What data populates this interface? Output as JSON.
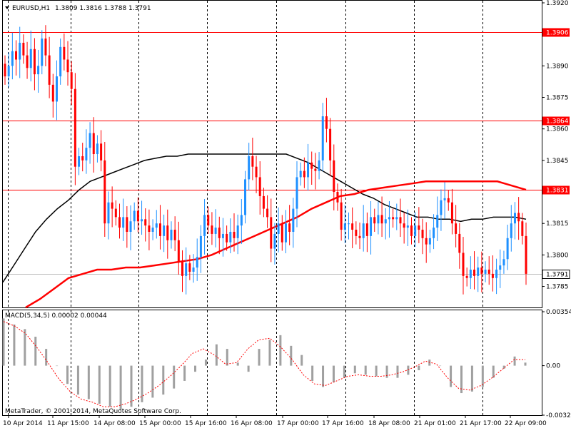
{
  "window": {
    "title": "EURUSD,H1",
    "ohlc": "1.3809 1.3816 1.3788 1.3791",
    "copyright": "MetaTrader, © 2001-2014, MetaQuotes Software Corp."
  },
  "chart_data": [
    {
      "type": "candlestick",
      "symbol": "EURUSD",
      "timeframe": "H1",
      "ylim": [
        1.3775,
        1.392
      ],
      "y_ticks": [
        "1.3920",
        "1.3890",
        "1.3875",
        "1.3860",
        "1.3845",
        "1.3815",
        "1.3800",
        "1.3785"
      ],
      "x_ticks": [
        "10 Apr 2014",
        "11 Apr 15:00",
        "14 Apr 08:00",
        "15 Apr 00:00",
        "15 Apr 16:00",
        "16 Apr 08:00",
        "17 Apr 00:00",
        "17 Apr 16:00",
        "18 Apr 08:00",
        "21 Apr 01:00",
        "21 Apr 17:00",
        "22 Apr 09:00"
      ],
      "horizontal_levels": [
        {
          "label": "1.3906",
          "value": 1.3906,
          "color": "#ff0000"
        },
        {
          "label": "1.3864",
          "value": 1.3864,
          "color": "#ff0000"
        },
        {
          "label": "1.3831",
          "value": 1.3831,
          "color": "#ff0000"
        }
      ],
      "current_price": {
        "label": "1.3791",
        "value": 1.3791
      },
      "bull_color": "#1e90ff",
      "bear_color": "#ff0000",
      "closes": [
        1.3885,
        1.389,
        1.3897,
        1.3893,
        1.3901,
        1.3895,
        1.3889,
        1.3898,
        1.3886,
        1.389,
        1.3903,
        1.3895,
        1.3881,
        1.3873,
        1.3885,
        1.3899,
        1.3893,
        1.3887,
        1.3879,
        1.3842,
        1.3847,
        1.3845,
        1.3851,
        1.3858,
        1.3848,
        1.3853,
        1.3845,
        1.3815,
        1.3825,
        1.3822,
        1.3818,
        1.3813,
        1.3818,
        1.3811,
        1.3816,
        1.3821,
        1.3816,
        1.3817,
        1.3814,
        1.3811,
        1.3813,
        1.3815,
        1.3809,
        1.3814,
        1.3807,
        1.3812,
        1.3807,
        1.3797,
        1.379,
        1.3796,
        1.3792,
        1.3794,
        1.3799,
        1.3809,
        1.3819,
        1.3814,
        1.381,
        1.3813,
        1.3808,
        1.381,
        1.3806,
        1.3811,
        1.3808,
        1.3814,
        1.3819,
        1.3836,
        1.3847,
        1.3842,
        1.3837,
        1.3828,
        1.3822,
        1.3818,
        1.3803,
        1.381,
        1.3815,
        1.3806,
        1.3815,
        1.3811,
        1.3822,
        1.3837,
        1.384,
        1.3837,
        1.3844,
        1.3841,
        1.384,
        1.3845,
        1.3866,
        1.386,
        1.3845,
        1.383,
        1.3825,
        1.3812,
        1.3815,
        1.3815,
        1.3812,
        1.3809,
        1.3808,
        1.3815,
        1.3809,
        1.3818,
        1.3815,
        1.3819,
        1.3815,
        1.3817,
        1.3818,
        1.3817,
        1.3818,
        1.3815,
        1.3813,
        1.3814,
        1.3809,
        1.3814,
        1.3812,
        1.3808,
        1.3805,
        1.3808,
        1.3813,
        1.3819,
        1.3826,
        1.3827,
        1.3825,
        1.3815,
        1.381,
        1.3801,
        1.379,
        1.3789,
        1.3793,
        1.379,
        1.3794,
        1.3791,
        1.3793,
        1.3791,
        1.3789,
        1.3793,
        1.3795,
        1.3798,
        1.3808,
        1.3815,
        1.382,
        1.3816,
        1.3809,
        1.3791
      ],
      "ma_black": [
        1.3787,
        1.3795,
        1.3803,
        1.3811,
        1.3817,
        1.3822,
        1.3826,
        1.3831,
        1.3835,
        1.3837,
        1.3839,
        1.3841,
        1.3843,
        1.3845,
        1.3846,
        1.3847,
        1.3847,
        1.3848,
        1.3848,
        1.3848,
        1.3848,
        1.3848,
        1.3848,
        1.3848,
        1.3848,
        1.3848,
        1.3848,
        1.3846,
        1.3844,
        1.3841,
        1.3838,
        1.3835,
        1.3832,
        1.3829,
        1.3827,
        1.3824,
        1.3822,
        1.382,
        1.3818,
        1.3818,
        1.3817,
        1.3817,
        1.3816,
        1.3817,
        1.3817,
        1.3818,
        1.3818,
        1.3818,
        1.3817
      ],
      "ma_red": [
        1.3775,
        1.3779,
        1.3784,
        1.3789,
        1.3791,
        1.3793,
        1.3793,
        1.3794,
        1.3794,
        1.3795,
        1.3796,
        1.3797,
        1.3798,
        1.38,
        1.3803,
        1.3806,
        1.3809,
        1.3812,
        1.3815,
        1.3818,
        1.3822,
        1.3825,
        1.3828,
        1.3829,
        1.3831,
        1.3832,
        1.3833,
        1.3834,
        1.3835,
        1.3835,
        1.3835,
        1.3835,
        1.3835,
        1.3835,
        1.3833,
        1.3831
      ]
    },
    {
      "type": "histogram",
      "label": "MACD(5,34,5) 0.00002 0.00044",
      "ylim": [
        -0.00325,
        0.00354
      ],
      "y_ticks": [
        "0.00354",
        "0.00",
        "-0.00325"
      ],
      "bar_color": "#a0a0a0",
      "signal_color": "#ff0000",
      "values": [
        0.0031,
        0.0027,
        0.0024,
        0.0019,
        0.0011,
        0.0,
        -0.0012,
        -0.0019,
        -0.0022,
        -0.0025,
        -0.0027,
        -0.0029,
        -0.0027,
        -0.0024,
        -0.0021,
        -0.0019,
        -0.0015,
        -0.001,
        -0.0004,
        0.0004,
        0.0014,
        0.0011,
        0.0002,
        -0.0004,
        0.0011,
        0.0017,
        0.002,
        0.0013,
        0.0007,
        -0.001,
        -0.0014,
        -0.0011,
        -0.0008,
        -0.0005,
        -0.0006,
        -0.0007,
        -0.0008,
        -0.0008,
        -0.0006,
        -0.0003,
        0.0004,
        0.0,
        -0.0014,
        -0.0018,
        -0.0017,
        -0.0014,
        -0.0008,
        -0.0002,
        0.0006,
        0.0002
      ],
      "signal": [
        0.0029,
        0.0026,
        0.0021,
        0.0012,
        0.0002,
        -0.0009,
        -0.0017,
        -0.0022,
        -0.0024,
        -0.0027,
        -0.0027,
        -0.0025,
        -0.0022,
        -0.0018,
        -0.0013,
        -0.0007,
        0.0,
        0.0008,
        0.0011,
        0.0007,
        0.0001,
        0.0002,
        0.0011,
        0.0017,
        0.0018,
        0.0012,
        0.0004,
        -0.0006,
        -0.0012,
        -0.0013,
        -0.001,
        -0.0007,
        -0.0006,
        -0.0007,
        -0.0007,
        -0.0006,
        -0.0004,
        -0.0001,
        0.0003,
        0.0001,
        -0.0008,
        -0.0015,
        -0.0016,
        -0.0013,
        -0.0008,
        -0.0002,
        0.0004,
        0.0004
      ]
    }
  ]
}
